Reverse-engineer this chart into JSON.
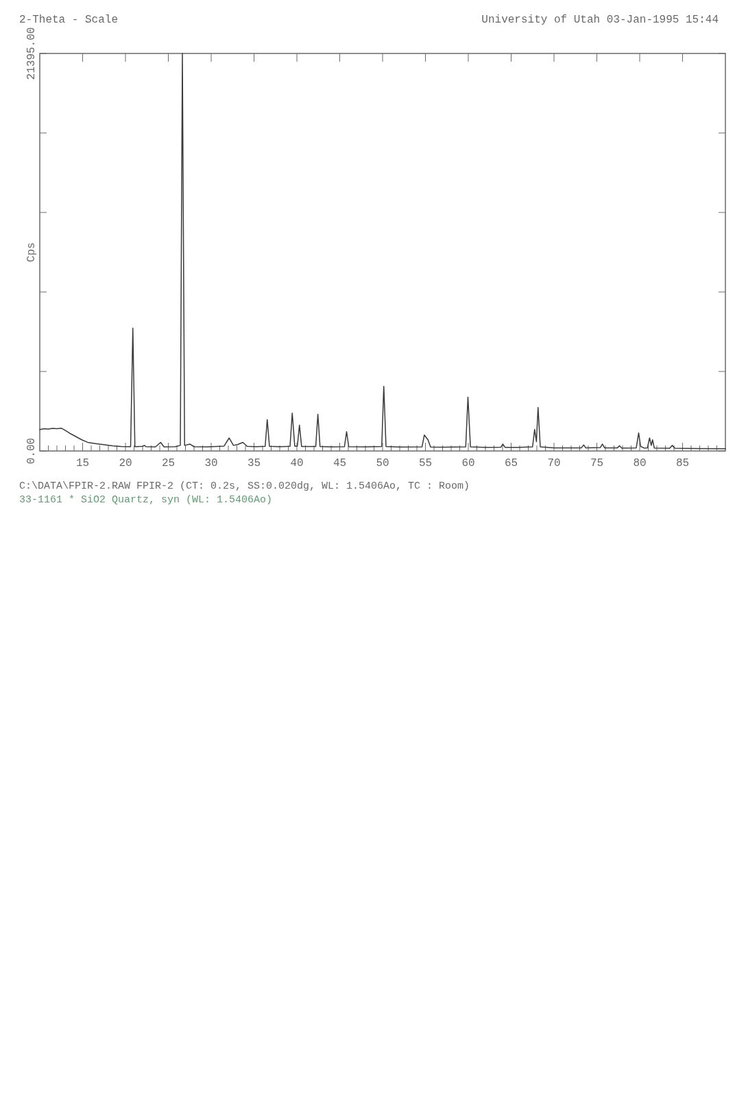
{
  "chart_data": {
    "type": "line",
    "title": "University of Utah 03-Jan-1995 15:44",
    "xlabel": "2-Theta - Scale",
    "ylabel": "Cps",
    "annotations": [
      "C:\\DATA\\FPIR-2.RAW FPIR-2 (CT: 0.2s, SS:0.020dg, WL: 1.5406Ao, TC : Room)",
      "33-1161 * SiO2 Quartz, syn (WL: 1.5406Ao)"
    ],
    "color": "#3a3a3a",
    "x": [
      10.0,
      10.5,
      11.0,
      11.5,
      12.0,
      12.5,
      13.0,
      13.5,
      14.0,
      14.5,
      15.0,
      15.6,
      16.5,
      17.3,
      18.5,
      19.5,
      20.6,
      20.86,
      21.1,
      22.0,
      22.2,
      22.4,
      23.5,
      24.1,
      24.5,
      25.8,
      26.4,
      26.64,
      26.9,
      27.5,
      28.0,
      29.5,
      31.5,
      32.1,
      32.6,
      33.1,
      33.7,
      34.2,
      35.2,
      36.3,
      36.54,
      36.8,
      38.0,
      39.2,
      39.46,
      39.75,
      40.05,
      40.3,
      40.55,
      42.2,
      42.45,
      42.7,
      44.0,
      45.55,
      45.8,
      46.05,
      48.0,
      49.9,
      50.14,
      50.4,
      52.0,
      54.6,
      54.87,
      55.3,
      55.6,
      57.0,
      59.7,
      59.96,
      60.25,
      62.0,
      63.8,
      64.03,
      64.3,
      65.8,
      67.5,
      67.74,
      67.95,
      68.14,
      68.4,
      70.0,
      73.2,
      73.47,
      73.7,
      75.4,
      75.65,
      75.9,
      77.4,
      77.65,
      77.9,
      79.6,
      79.88,
      80.1,
      80.5,
      80.9,
      81.15,
      81.35,
      81.5,
      81.7,
      83.5,
      83.8,
      84.1,
      87.0,
      90.0
    ],
    "values": [
      1150,
      1200,
      1180,
      1220,
      1200,
      1230,
      1100,
      950,
      830,
      700,
      580,
      464,
      400,
      348,
      280,
      240,
      230,
      6610,
      230,
      250,
      300,
      230,
      220,
      460,
      220,
      230,
      300,
      21395,
      300,
      370,
      230,
      220,
      260,
      700,
      300,
      350,
      460,
      250,
      230,
      250,
      1690,
      250,
      230,
      250,
      2040,
      260,
      260,
      1390,
      240,
      240,
      1970,
      240,
      220,
      230,
      1040,
      230,
      220,
      240,
      3480,
      240,
      210,
      220,
      860,
      600,
      210,
      200,
      220,
      2900,
      220,
      190,
      200,
      370,
      190,
      190,
      220,
      1160,
      500,
      2340,
      220,
      170,
      170,
      325,
      170,
      180,
      370,
      170,
      170,
      280,
      160,
      170,
      970,
      250,
      160,
      170,
      700,
      300,
      600,
      160,
      150,
      300,
      150,
      130,
      120
    ],
    "xlim": [
      10,
      90
    ],
    "ylim": [
      0,
      21395
    ],
    "xticks": [
      {
        "value": 11,
        "label": null
      },
      {
        "value": 12,
        "label": null
      },
      {
        "value": 13,
        "label": null
      },
      {
        "value": 14,
        "label": null
      },
      15,
      {
        "value": 16,
        "label": null
      },
      {
        "value": 17,
        "label": null
      },
      {
        "value": 18,
        "label": null
      },
      {
        "value": 19,
        "label": null
      },
      20,
      {
        "value": 21,
        "label": null
      },
      {
        "value": 22,
        "label": null
      },
      {
        "value": 23,
        "label": null
      },
      {
        "value": 24,
        "label": null
      },
      25,
      {
        "value": 26,
        "label": null
      },
      {
        "value": 27,
        "label": null
      },
      {
        "value": 28,
        "label": null
      },
      {
        "value": 29,
        "label": null
      },
      30,
      {
        "value": 31,
        "label": null
      },
      {
        "value": 32,
        "label": null
      },
      {
        "value": 33,
        "label": null
      },
      {
        "value": 34,
        "label": null
      },
      35,
      {
        "value": 36,
        "label": null
      },
      {
        "value": 37,
        "label": null
      },
      {
        "value": 38,
        "label": null
      },
      {
        "value": 39,
        "label": null
      },
      40,
      {
        "value": 41,
        "label": null
      },
      {
        "value": 42,
        "label": null
      },
      {
        "value": 43,
        "label": null
      },
      {
        "value": 44,
        "label": null
      },
      45,
      {
        "value": 46,
        "label": null
      },
      {
        "value": 47,
        "label": null
      },
      {
        "value": 48,
        "label": null
      },
      {
        "value": 49,
        "label": null
      },
      50,
      {
        "value": 51,
        "label": null
      },
      {
        "value": 52,
        "label": null
      },
      {
        "value": 53,
        "label": null
      },
      {
        "value": 54,
        "label": null
      },
      55,
      {
        "value": 56,
        "label": null
      },
      {
        "value": 57,
        "label": null
      },
      {
        "value": 58,
        "label": null
      },
      {
        "value": 59,
        "label": null
      },
      60,
      {
        "value": 61,
        "label": null
      },
      {
        "value": 62,
        "label": null
      },
      {
        "value": 63,
        "label": null
      },
      {
        "value": 64,
        "label": null
      },
      65,
      {
        "value": 66,
        "label": null
      },
      {
        "value": 67,
        "label": null
      },
      {
        "value": 68,
        "label": null
      },
      {
        "value": 69,
        "label": null
      },
      70,
      {
        "value": 71,
        "label": null
      },
      {
        "value": 72,
        "label": null
      },
      {
        "value": 73,
        "label": null
      },
      {
        "value": 74,
        "label": null
      },
      75,
      {
        "value": 76,
        "label": null
      },
      {
        "value": 77,
        "label": null
      },
      {
        "value": 78,
        "label": null
      },
      {
        "value": 79,
        "label": null
      },
      80,
      {
        "value": 81,
        "label": null
      },
      {
        "value": 82,
        "label": null
      },
      {
        "value": 83,
        "label": null
      },
      {
        "value": 84,
        "label": null
      },
      85,
      {
        "value": 86,
        "label": null
      },
      {
        "value": 87,
        "label": null
      },
      {
        "value": 88,
        "label": null
      },
      {
        "value": 89,
        "label": null
      }
    ],
    "yticks": [
      {
        "value": 0,
        "label": "0.00"
      },
      {
        "value": 4279,
        "label": null
      },
      {
        "value": 8558,
        "label": null
      },
      {
        "value": 12837,
        "label": null
      },
      {
        "value": 17116,
        "label": null
      },
      {
        "value": 21395,
        "label": "21395.00"
      }
    ]
  }
}
